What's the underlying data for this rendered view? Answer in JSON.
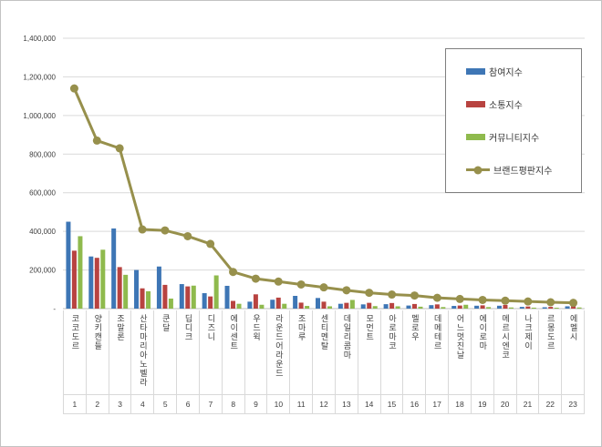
{
  "chart_data": {
    "type": "bar",
    "title": "",
    "xlabel": "",
    "ylabel": "",
    "grid": true,
    "legend_position": "right-top",
    "y_axis": {
      "min": 0,
      "max": 1400000,
      "step": 200000,
      "tick_labels_top_to_bottom": [
        "1,400,000",
        "1,200,000",
        "1,000,000",
        "800,000",
        "600,000",
        "400,000",
        "200,000",
        "-"
      ]
    },
    "categories": [
      "코코도르",
      "양키캔들",
      "조말론",
      "산타마리아노벨라",
      "쿤달",
      "딥디크",
      "디즈니",
      "에이센트",
      "우드윅",
      "라운드어라운드",
      "조마루",
      "센티멘탈",
      "데일리콤마",
      "모먼트",
      "아로마코",
      "멜로우",
      "데메테르",
      "어느멋진날",
      "에이로마",
      "메르시엔코",
      "나크제이",
      "르몽도르",
      "에멜시"
    ],
    "category_numbers": [
      "1",
      "2",
      "3",
      "4",
      "5",
      "6",
      "7",
      "8",
      "9",
      "10",
      "11",
      "12",
      "13",
      "14",
      "15",
      "16",
      "17",
      "18",
      "19",
      "20",
      "21",
      "22",
      "23"
    ],
    "series": [
      {
        "name": "참여지수",
        "type": "bar",
        "color": "#3e76b5",
        "values": [
          450000,
          270000,
          415000,
          200000,
          218000,
          127000,
          80000,
          118000,
          36000,
          46000,
          66000,
          55000,
          25000,
          22000,
          23000,
          16000,
          18000,
          14000,
          15000,
          15000,
          9000,
          7000,
          12000
        ]
      },
      {
        "name": "소통지수",
        "type": "bar",
        "color": "#b84340",
        "values": [
          300000,
          263000,
          215000,
          105000,
          123000,
          115000,
          63000,
          40000,
          74000,
          57000,
          31000,
          36000,
          30000,
          30000,
          29000,
          24000,
          22000,
          16000,
          17000,
          19000,
          11000,
          9000,
          20000
        ]
      },
      {
        "name": "커뮤니티지수",
        "type": "bar",
        "color": "#8fba4d",
        "values": [
          375000,
          305000,
          175000,
          90000,
          52000,
          119000,
          172000,
          25000,
          20000,
          25000,
          14000,
          12000,
          45000,
          13000,
          12000,
          10000,
          8000,
          20000,
          8000,
          6000,
          5000,
          4000,
          6000
        ]
      },
      {
        "name": "브랜드평판지수",
        "type": "line",
        "color": "#97904c",
        "values": [
          1140000,
          870000,
          830000,
          410000,
          405000,
          375000,
          335000,
          190000,
          155000,
          140000,
          125000,
          110000,
          95000,
          82000,
          73000,
          68000,
          56000,
          50000,
          45000,
          41000,
          37000,
          33000,
          30000
        ]
      }
    ]
  }
}
